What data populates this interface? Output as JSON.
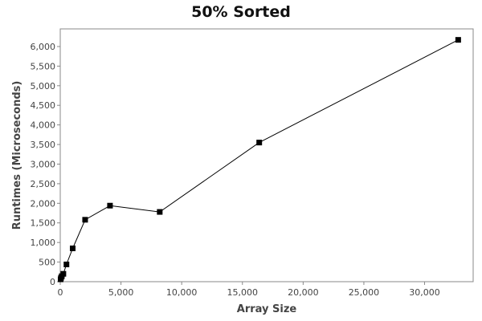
{
  "chart_data": {
    "type": "line",
    "title": "50% Sorted",
    "xlabel": "Array Size",
    "ylabel": "Runtimes (Microseconds)",
    "xlim": [
      0,
      34000
    ],
    "ylim": [
      0,
      6450
    ],
    "x_ticks": [
      0,
      5000,
      10000,
      15000,
      20000,
      25000,
      30000
    ],
    "x_tick_labels": [
      "0",
      "5,000",
      "10,000",
      "15,000",
      "20,000",
      "25,000",
      "30,000"
    ],
    "y_ticks": [
      0,
      500,
      1000,
      1500,
      2000,
      2500,
      3000,
      3500,
      4000,
      4500,
      5000,
      5500,
      6000
    ],
    "y_tick_labels": [
      "0",
      "500",
      "1,000",
      "1,500",
      "2,000",
      "2,500",
      "3,000",
      "3,500",
      "4,000",
      "4,500",
      "5,000",
      "5,500",
      "6,000"
    ],
    "grid": false,
    "series": [
      {
        "x": [
          32,
          64,
          128,
          256,
          512,
          1024,
          2048,
          4096,
          8192,
          16384,
          32768
        ],
        "y": [
          60,
          100,
          140,
          200,
          440,
          850,
          1580,
          1940,
          1780,
          3550,
          6170
        ],
        "color": "#000000",
        "marker": "square"
      }
    ]
  }
}
